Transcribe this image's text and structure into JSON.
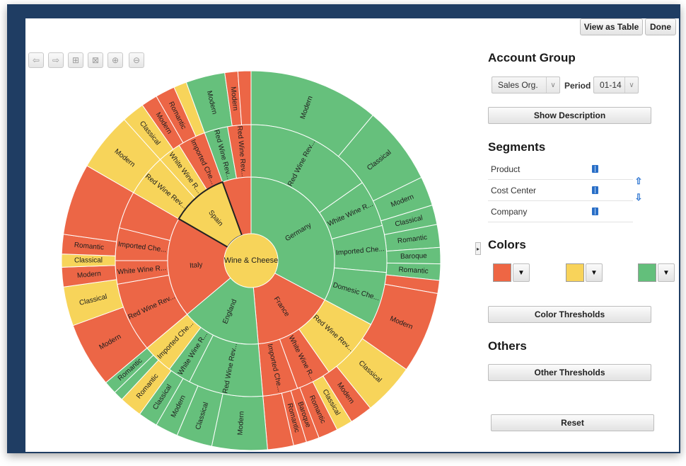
{
  "toolbar": {
    "buttons": [
      {
        "name": "back-arrow-icon",
        "glyph": "⇦"
      },
      {
        "name": "forward-arrow-icon",
        "glyph": "⇨"
      },
      {
        "name": "add-node-icon",
        "glyph": "⊞"
      },
      {
        "name": "remove-node-icon",
        "glyph": "⊠"
      },
      {
        "name": "zoom-in-icon",
        "glyph": "⊕"
      },
      {
        "name": "zoom-out-icon",
        "glyph": "⊖"
      }
    ]
  },
  "top_buttons": {
    "view_as_table": "View as Table",
    "done": "Done"
  },
  "panel": {
    "account_group_heading": "Account Group",
    "account_group_select": "Sales Org.",
    "period_label": "Period",
    "period_select": "01-14",
    "show_description": "Show Description",
    "segments_heading": "Segments",
    "segments": [
      "Product",
      "Cost Center",
      "Company"
    ],
    "colors_heading": "Colors",
    "colors": [
      "#ee6644",
      "#f8d35a",
      "#63bf7b"
    ],
    "color_thresholds": "Color Thresholds",
    "others_heading": "Others",
    "other_thresholds": "Other Thresholds",
    "reset": "Reset"
  },
  "palette": {
    "red": "#ec6646",
    "yellow": "#f7d45a",
    "green": "#66c07c"
  },
  "sunburst": {
    "center_label": "Wine & Cheese",
    "selected": "Spain",
    "ring1": [
      {
        "label": "Germany",
        "start": 0,
        "end": 118,
        "color": "green"
      },
      {
        "label": "France",
        "start": 118,
        "end": 175,
        "color": "red"
      },
      {
        "label": "England",
        "start": 175,
        "end": 230,
        "color": "green"
      },
      {
        "label": "Italy",
        "start": 230,
        "end": 300,
        "color": "red"
      },
      {
        "label": "Spain",
        "start": 300,
        "end": 340,
        "color": "yellow"
      },
      {
        "label": "",
        "start": 340,
        "end": 360,
        "color": "red"
      }
    ],
    "ring2": [
      {
        "label": "Red Wine Rev...",
        "start": 0,
        "end": 55,
        "color": "green"
      },
      {
        "label": "White Wine R...",
        "start": 55,
        "end": 75,
        "color": "green"
      },
      {
        "label": "Imported Che...",
        "start": 75,
        "end": 95,
        "color": "green"
      },
      {
        "label": "Domesic Che...",
        "start": 95,
        "end": 118,
        "color": "green"
      },
      {
        "label": "Red Wine Rev...",
        "start": 118,
        "end": 145,
        "color": "yellow"
      },
      {
        "label": "White Wine R...",
        "start": 145,
        "end": 160,
        "color": "red"
      },
      {
        "label": "Imported Che...",
        "start": 160,
        "end": 175,
        "color": "red"
      },
      {
        "label": "Red Wine Rev...",
        "start": 175,
        "end": 207,
        "color": "green"
      },
      {
        "label": "White Wine R...",
        "start": 207,
        "end": 217,
        "color": "green"
      },
      {
        "label": "Imported Che...",
        "start": 217,
        "end": 230,
        "color": "yellow"
      },
      {
        "label": "Red Wine Rev...",
        "start": 230,
        "end": 260,
        "color": "red"
      },
      {
        "label": "White Wine R...",
        "start": 260,
        "end": 270,
        "color": "red"
      },
      {
        "label": "Imported Che...",
        "start": 270,
        "end": 284,
        "color": "red"
      },
      {
        "label": "",
        "start": 284,
        "end": 300,
        "color": "red"
      },
      {
        "label": "Red Wine Rev...",
        "start": 300,
        "end": 318,
        "color": "yellow"
      },
      {
        "label": "White Wine R...",
        "start": 318,
        "end": 328,
        "color": "yellow"
      },
      {
        "label": "Imported Che...",
        "start": 328,
        "end": 340,
        "color": "red"
      },
      {
        "label": "Red Wine Rev...",
        "start": 340,
        "end": 350,
        "color": "green"
      },
      {
        "label": "Red Wine Rev...",
        "start": 350,
        "end": 360,
        "color": "red"
      }
    ],
    "ring3": [
      {
        "label": "Modern",
        "start": 0,
        "end": 40,
        "color": "green"
      },
      {
        "label": "Classical",
        "start": 40,
        "end": 64,
        "color": "green"
      },
      {
        "label": "Modern",
        "start": 64,
        "end": 73,
        "color": "green"
      },
      {
        "label": "Classical",
        "start": 73,
        "end": 79,
        "color": "green"
      },
      {
        "label": "Romantic",
        "start": 79,
        "end": 86,
        "color": "green"
      },
      {
        "label": "Baroque",
        "start": 86,
        "end": 91,
        "color": "green"
      },
      {
        "label": "Romantic",
        "start": 91,
        "end": 96,
        "color": "green"
      },
      {
        "label": "",
        "start": 96,
        "end": 100,
        "color": "red"
      },
      {
        "label": "Modern",
        "start": 100,
        "end": 125,
        "color": "red"
      },
      {
        "label": "Classical",
        "start": 125,
        "end": 141,
        "color": "yellow"
      },
      {
        "label": "Modern",
        "start": 141,
        "end": 148,
        "color": "red"
      },
      {
        "label": "Classical",
        "start": 148,
        "end": 153,
        "color": "yellow"
      },
      {
        "label": "Romantic",
        "start": 153,
        "end": 159,
        "color": "red"
      },
      {
        "label": "Baroque",
        "start": 159,
        "end": 163,
        "color": "red"
      },
      {
        "label": "Romantic",
        "start": 163,
        "end": 167,
        "color": "red"
      },
      {
        "label": "",
        "start": 167,
        "end": 175,
        "color": "red"
      },
      {
        "label": "Modern",
        "start": 175,
        "end": 192,
        "color": "green"
      },
      {
        "label": "Classical",
        "start": 192,
        "end": 203,
        "color": "green"
      },
      {
        "label": "Modern",
        "start": 203,
        "end": 210,
        "color": "green"
      },
      {
        "label": "Classical",
        "start": 210,
        "end": 216,
        "color": "green"
      },
      {
        "label": "Romantic",
        "start": 216,
        "end": 223,
        "color": "yellow"
      },
      {
        "label": "",
        "start": 223,
        "end": 226,
        "color": "green"
      },
      {
        "label": "Romantic",
        "start": 226,
        "end": 230,
        "color": "green"
      },
      {
        "label": "Modern",
        "start": 230,
        "end": 250,
        "color": "red"
      },
      {
        "label": "Classical",
        "start": 250,
        "end": 262,
        "color": "yellow"
      },
      {
        "label": "Modern",
        "start": 262,
        "end": 268,
        "color": "red"
      },
      {
        "label": "Classical",
        "start": 268,
        "end": 272,
        "color": "yellow"
      },
      {
        "label": "Romantic",
        "start": 272,
        "end": 278,
        "color": "red"
      },
      {
        "label": "",
        "start": 278,
        "end": 300,
        "color": "red"
      },
      {
        "label": "Modern",
        "start": 300,
        "end": 318,
        "color": "yellow"
      },
      {
        "label": "Classical",
        "start": 318,
        "end": 325,
        "color": "yellow"
      },
      {
        "label": "Modern",
        "start": 325,
        "end": 330,
        "color": "red"
      },
      {
        "label": "Romantic",
        "start": 330,
        "end": 336,
        "color": "red"
      },
      {
        "label": "",
        "start": 336,
        "end": 340,
        "color": "yellow"
      },
      {
        "label": "Modern",
        "start": 340,
        "end": 352,
        "color": "green"
      },
      {
        "label": "Modern",
        "start": 352,
        "end": 356,
        "color": "red"
      },
      {
        "label": "",
        "start": 356,
        "end": 360,
        "color": "red"
      }
    ]
  }
}
